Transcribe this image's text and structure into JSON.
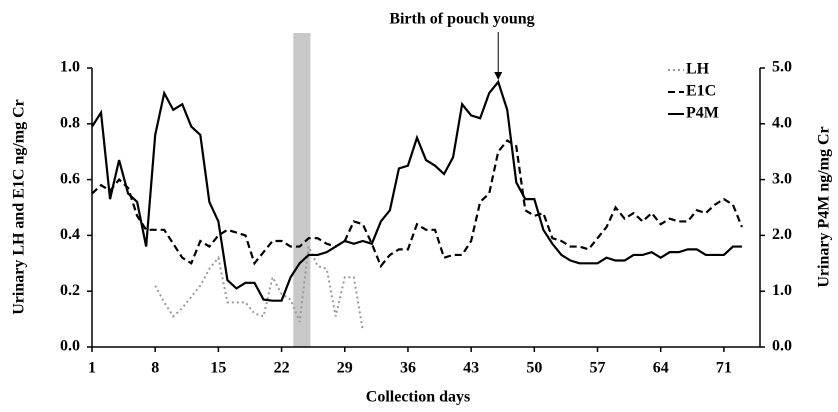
{
  "chart_data": {
    "type": "line",
    "xlabel": "Collection days",
    "ylabel": "Urinary LH and E1C ng/mg Cr",
    "y2label": "Urinary P4M ng/mg Cr",
    "annotation": {
      "text": "Birth of pouch young",
      "x": 46,
      "y": 4.75
    },
    "shaded_span": [
      23.3,
      25.2
    ],
    "legend": "top-right",
    "x": [
      1,
      2,
      3,
      4,
      5,
      6,
      7,
      8,
      9,
      10,
      11,
      12,
      13,
      14,
      15,
      16,
      17,
      18,
      19,
      20,
      21,
      22,
      23,
      24,
      25,
      26,
      27,
      28,
      29,
      30,
      31,
      32,
      33,
      34,
      35,
      36,
      37,
      38,
      39,
      40,
      41,
      42,
      43,
      44,
      45,
      46,
      47,
      48,
      49,
      50,
      51,
      52,
      53,
      54,
      55,
      56,
      57,
      58,
      59,
      60,
      61,
      62,
      63,
      64,
      65,
      66,
      67,
      68,
      69,
      70,
      71,
      72,
      73
    ],
    "xlim": [
      1,
      75
    ],
    "xticks": [
      1,
      8,
      15,
      22,
      29,
      36,
      43,
      50,
      57,
      64,
      71
    ],
    "ylim": [
      0,
      1
    ],
    "yticks": [
      {
        "value": 0,
        "label": "0.0"
      },
      {
        "value": 0.2,
        "label": "0.2"
      },
      {
        "value": 0.4,
        "label": "0.4"
      },
      {
        "value": 0.6,
        "label": "0.6"
      },
      {
        "value": 0.8,
        "label": "0.8"
      },
      {
        "value": 1,
        "label": "1.0"
      }
    ],
    "y2lim": [
      0,
      5
    ],
    "y2ticks": [
      {
        "value": 0,
        "label": "0.0"
      },
      {
        "value": 1,
        "label": "1.0"
      },
      {
        "value": 2,
        "label": "2.0"
      },
      {
        "value": 3,
        "label": "3.0"
      },
      {
        "value": 4,
        "label": "4.0"
      },
      {
        "value": 5,
        "label": "5.0"
      }
    ],
    "series": [
      {
        "name": "LH",
        "color": "#999999",
        "style": "dotted",
        "axis": "y",
        "values": [
          null,
          null,
          null,
          null,
          null,
          null,
          null,
          0.22,
          0.16,
          0.11,
          0.14,
          0.18,
          0.22,
          0.28,
          0.32,
          0.16,
          0.16,
          0.16,
          0.12,
          0.11,
          0.25,
          0.19,
          0.17,
          0.09,
          0.36,
          0.29,
          0.28,
          0.11,
          0.25,
          0.25,
          0.06,
          null,
          null,
          null,
          null,
          null,
          null,
          null,
          null,
          null,
          null,
          null,
          null,
          null,
          null,
          null,
          null,
          null,
          null,
          null,
          null,
          null,
          null,
          null,
          null,
          null,
          null,
          null,
          null,
          null,
          null,
          null,
          null,
          null,
          null,
          null,
          null,
          null,
          null,
          null,
          null,
          null,
          null
        ]
      },
      {
        "name": "E1C",
        "color": "#000000",
        "style": "dashed",
        "axis": "y",
        "values": [
          0.55,
          0.58,
          0.56,
          0.6,
          0.57,
          0.47,
          0.42,
          0.42,
          0.42,
          0.37,
          0.32,
          0.3,
          0.38,
          0.36,
          0.4,
          0.42,
          0.41,
          0.4,
          0.3,
          0.34,
          0.38,
          0.38,
          0.36,
          0.36,
          0.39,
          0.39,
          0.37,
          0.36,
          0.38,
          0.45,
          0.44,
          0.37,
          0.29,
          0.33,
          0.35,
          0.35,
          0.44,
          0.42,
          0.42,
          0.32,
          0.33,
          0.33,
          0.38,
          0.52,
          0.55,
          0.7,
          0.74,
          0.72,
          0.49,
          0.47,
          0.48,
          0.39,
          0.38,
          0.36,
          0.36,
          0.35,
          0.39,
          0.43,
          0.5,
          0.46,
          0.48,
          0.45,
          0.48,
          0.44,
          0.46,
          0.45,
          0.45,
          0.49,
          0.48,
          0.51,
          0.53,
          0.51,
          0.43
        ]
      },
      {
        "name": "P4M",
        "color": "#000000",
        "style": "solid",
        "axis": "y2",
        "values": [
          3.95,
          4.2,
          2.65,
          3.35,
          2.75,
          2.6,
          1.8,
          3.8,
          4.55,
          4.25,
          4.35,
          3.95,
          3.8,
          2.6,
          2.25,
          1.2,
          1.05,
          1.15,
          1.15,
          0.85,
          0.83,
          0.83,
          1.25,
          1.5,
          1.65,
          1.65,
          1.7,
          1.8,
          1.9,
          1.85,
          1.9,
          1.85,
          2.25,
          2.45,
          3.2,
          3.25,
          3.75,
          3.35,
          3.25,
          3.1,
          3.4,
          4.35,
          4.15,
          4.1,
          4.55,
          4.75,
          4.25,
          2.95,
          2.65,
          2.65,
          2.1,
          1.85,
          1.65,
          1.55,
          1.5,
          1.5,
          1.5,
          1.6,
          1.55,
          1.55,
          1.65,
          1.65,
          1.7,
          1.6,
          1.7,
          1.7,
          1.75,
          1.75,
          1.65,
          1.65,
          1.65,
          1.8,
          1.8
        ]
      }
    ]
  }
}
